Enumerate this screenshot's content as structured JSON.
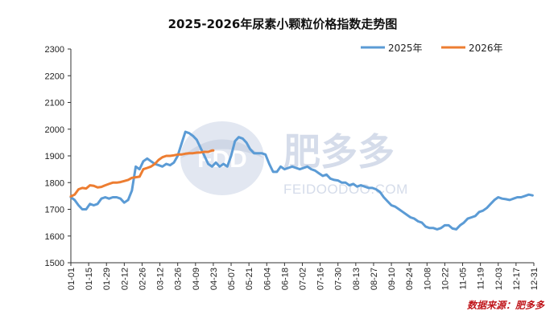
{
  "chart_data": {
    "type": "line",
    "title": "2025-2026年尿素小颗粒价格指数走势图",
    "ylim": [
      1500,
      2300
    ],
    "yticks": [
      1500,
      1600,
      1700,
      1800,
      1900,
      2000,
      2100,
      2200,
      2300
    ],
    "x_tick_labels": [
      "01-01",
      "01-15",
      "01-29",
      "02-12",
      "02-26",
      "03-12",
      "03-26",
      "04-09",
      "04-23",
      "05-07",
      "05-21",
      "06-04",
      "06-18",
      "07-02",
      "07-16",
      "07-30",
      "08-13",
      "08-27",
      "09-10",
      "09-24",
      "10-08",
      "10-22",
      "11-05",
      "11-19",
      "12-03",
      "12-17",
      "12-31"
    ],
    "x_tick_days": [
      0,
      14,
      28,
      42,
      56,
      70,
      84,
      98,
      112,
      126,
      140,
      154,
      168,
      182,
      196,
      210,
      224,
      238,
      252,
      266,
      280,
      294,
      308,
      322,
      336,
      350,
      364
    ],
    "legend_position": "top-right",
    "series": [
      {
        "name": "2025年",
        "color": "#5b9bd5",
        "x": [
          0,
          3,
          6,
          9,
          12,
          15,
          18,
          21,
          24,
          27,
          30,
          33,
          36,
          39,
          42,
          45,
          48,
          51,
          54,
          57,
          60,
          63,
          66,
          69,
          72,
          75,
          78,
          81,
          84,
          87,
          90,
          93,
          96,
          99,
          102,
          105,
          108,
          111,
          114,
          117,
          120,
          123,
          126,
          129,
          132,
          135,
          138,
          141,
          144,
          147,
          150,
          153,
          156,
          159,
          162,
          165,
          168,
          171,
          174,
          177,
          180,
          183,
          186,
          189,
          192,
          195,
          198,
          201,
          204,
          207,
          210,
          213,
          216,
          219,
          222,
          225,
          228,
          231,
          234,
          237,
          240,
          243,
          246,
          249,
          252,
          255,
          258,
          261,
          264,
          267,
          270,
          273,
          276,
          279,
          282,
          285,
          288,
          291,
          294,
          297,
          300,
          303,
          306,
          309,
          312,
          315,
          318,
          321,
          324,
          327,
          330,
          333,
          336,
          339,
          342,
          345,
          348,
          351,
          354,
          357,
          360,
          363
        ],
        "values": [
          1745,
          1735,
          1715,
          1700,
          1700,
          1720,
          1715,
          1720,
          1740,
          1745,
          1740,
          1745,
          1745,
          1740,
          1725,
          1735,
          1770,
          1860,
          1850,
          1880,
          1890,
          1880,
          1870,
          1865,
          1860,
          1870,
          1865,
          1875,
          1900,
          1945,
          1990,
          1985,
          1975,
          1960,
          1930,
          1900,
          1870,
          1860,
          1875,
          1860,
          1870,
          1860,
          1900,
          1955,
          1970,
          1965,
          1950,
          1925,
          1910,
          1910,
          1910,
          1905,
          1870,
          1840,
          1840,
          1860,
          1850,
          1855,
          1860,
          1855,
          1850,
          1855,
          1860,
          1850,
          1845,
          1835,
          1825,
          1830,
          1815,
          1810,
          1808,
          1800,
          1800,
          1790,
          1795,
          1785,
          1790,
          1785,
          1780,
          1780,
          1775,
          1765,
          1745,
          1730,
          1715,
          1710,
          1700,
          1690,
          1680,
          1670,
          1665,
          1655,
          1650,
          1635,
          1630,
          1630,
          1625,
          1630,
          1640,
          1640,
          1628,
          1625,
          1640,
          1650,
          1665,
          1670,
          1675,
          1690,
          1695,
          1705,
          1720,
          1735,
          1745,
          1740,
          1738,
          1735,
          1740,
          1745,
          1745,
          1750,
          1755,
          1752
        ]
      },
      {
        "name": "2026年",
        "color": "#ed7d31",
        "x": [
          0,
          3,
          6,
          9,
          12,
          15,
          18,
          21,
          24,
          27,
          30,
          33,
          36,
          39,
          42,
          45,
          48,
          51,
          54,
          57,
          60,
          63,
          66,
          69,
          72,
          75,
          78,
          81,
          84,
          87,
          90,
          93,
          96,
          99,
          102,
          105,
          108,
          111,
          112
        ],
        "values": [
          1748,
          1755,
          1775,
          1780,
          1778,
          1790,
          1788,
          1782,
          1784,
          1790,
          1795,
          1800,
          1800,
          1802,
          1806,
          1810,
          1818,
          1820,
          1822,
          1850,
          1855,
          1860,
          1870,
          1885,
          1895,
          1900,
          1900,
          1902,
          1905,
          1905,
          1908,
          1910,
          1910,
          1912,
          1913,
          1915,
          1915,
          1920,
          1920
        ]
      }
    ]
  },
  "source_label": "数据来源：肥多多",
  "watermark": {
    "logo_text": "FDD",
    "brand_cn": "肥多多",
    "brand_en": "FEIDOODOO.COM"
  }
}
